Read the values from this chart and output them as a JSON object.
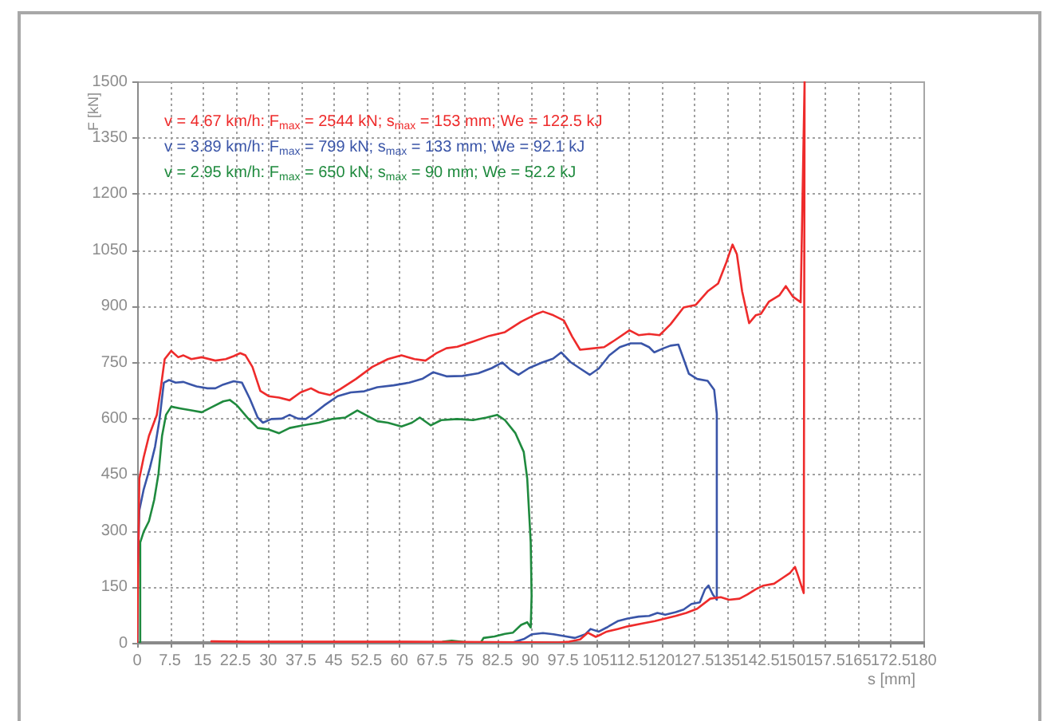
{
  "chart_data": {
    "type": "line",
    "xlabel": "s [mm]",
    "ylabel": "F [kN]",
    "xlim": [
      0,
      180
    ],
    "xticks": [
      0,
      7.5,
      15,
      22.5,
      30,
      37.5,
      45,
      52.5,
      60,
      67.5,
      75,
      82.5,
      90,
      97.5,
      105,
      112.5,
      120,
      127.5,
      135,
      142.5,
      150,
      157.5,
      165,
      172.5,
      180
    ],
    "ylim": [
      0,
      1500
    ],
    "yticks": [
      0,
      150,
      300,
      450,
      600,
      750,
      900,
      1050,
      1200,
      1350,
      1500
    ],
    "grid": true,
    "legend": "top left",
    "marker": "none",
    "line_style": "solid",
    "series": [
      {
        "name": "v = 4.67 km/h: F$_{max}$ = 2544 kN; s$_{max}$ = 153 mm; We = 122.5 kJ",
        "color": "#ee2b2b",
        "x": [
          0,
          0.5,
          1.5,
          2.7,
          4.5,
          5.4,
          6.3,
          7.8,
          9.4,
          10.6,
          12.4,
          14.8,
          17.9,
          20.3,
          22.1,
          23.6,
          24.8,
          26.4,
          28.2,
          30.1,
          32.5,
          34.9,
          37.4,
          39.8,
          41.6,
          44.1,
          46.5,
          50.1,
          53.8,
          57.4,
          60.5,
          63.5,
          66,
          68.4,
          70.8,
          73.3,
          76.9,
          80.6,
          84.2,
          87.9,
          91.5,
          92.9,
          95.3,
          97.7,
          99.6,
          101.4,
          103.8,
          106.9,
          109.3,
          112.7,
          114.8,
          117.2,
          119.6,
          122.1,
          125.1,
          127.9,
          130.6,
          133,
          134.9,
          136.3,
          137.3,
          138.5,
          140.1,
          141.6,
          142.8,
          144.6,
          147,
          148.5,
          150.1,
          151.9,
          152.8,
          152.6,
          151.2,
          150.6,
          149.4,
          147.6,
          145.8,
          143.4,
          141.6,
          139.7,
          137.9,
          135.5,
          133.6,
          131.2,
          128.2,
          125.7,
          123.3,
          120.9,
          118.5,
          115.4,
          112.3,
          110,
          107.5,
          106.3,
          105,
          103.2,
          101.4,
          98.9,
          96.5,
          80,
          60,
          40,
          25,
          17
        ],
        "values": [
          0,
          439,
          496,
          553,
          609,
          680,
          758,
          780,
          763,
          768,
          758,
          763,
          754,
          758,
          766,
          774,
          768,
          737,
          673,
          659,
          655,
          648,
          669,
          680,
          669,
          662,
          678,
          705,
          737,
          758,
          768,
          758,
          754,
          773,
          787,
          791,
          805,
          820,
          830,
          858,
          879,
          885,
          875,
          861,
          818,
          783,
          786,
          790,
          808,
          835,
          822,
          825,
          822,
          851,
          896,
          903,
          939,
          960,
          1017,
          1064,
          1038,
          939,
          854,
          875,
          879,
          911,
          928,
          953,
          925,
          910,
          1500,
          133,
          183,
          203,
          186,
          172,
          158,
          153,
          143,
          129,
          118,
          115,
          122,
          118,
          91,
          80,
          72,
          65,
          58,
          51,
          44,
          37,
          30,
          23,
          16,
          27,
          9,
          3,
          1,
          2,
          3,
          3,
          3,
          4
        ]
      },
      {
        "name": "v = 3.89 km/h: F$_{max}$ = 799 kN; s$_{max}$ = 133 mm; We = 92.1 kJ",
        "color": "#3a55a8",
        "x": [
          0,
          0,
          0.5,
          1.5,
          2.9,
          4.1,
          5.1,
          6.1,
          7.3,
          8.8,
          10.6,
          11.8,
          13.6,
          16.1,
          17.9,
          19.7,
          22.1,
          24,
          25.8,
          27.6,
          28.8,
          30.7,
          33.1,
          34.9,
          36.8,
          38.6,
          40.4,
          42.8,
          45.9,
          48.9,
          52,
          55,
          58.7,
          62.3,
          65.4,
          67.8,
          70.8,
          74.5,
          78.1,
          81.2,
          83.6,
          85.4,
          87.3,
          89.7,
          92.7,
          95.2,
          97.1,
          99.2,
          101.4,
          103.6,
          105.7,
          108.1,
          110.5,
          113,
          115.4,
          117.2,
          118.4,
          120.3,
          122.1,
          123.9,
          124.8,
          126.3,
          128.2,
          130.6,
          132.1,
          132.7,
          132.7,
          131.8,
          130.8,
          130,
          128.8,
          126.9,
          125.1,
          123.3,
          120.9,
          119.1,
          117.2,
          114.8,
          112.3,
          110,
          107.5,
          105.7,
          103.8,
          102.6,
          100.2,
          97.7,
          95.3,
          92.9,
          90.4,
          88.5,
          86,
          60,
          30
        ],
        "values": [
          0,
          141,
          354,
          410,
          467,
          524,
          595,
          695,
          702,
          695,
          697,
          692,
          685,
          680,
          680,
          690,
          699,
          695,
          652,
          602,
          588,
          598,
          599,
          609,
          599,
          598,
          612,
          634,
          659,
          669,
          672,
          683,
          688,
          695,
          706,
          723,
          712,
          713,
          720,
          734,
          749,
          730,
          716,
          734,
          749,
          759,
          776,
          750,
          733,
          716,
          733,
          768,
          790,
          800,
          800,
          790,
          776,
          786,
          794,
          797,
          768,
          719,
          705,
          700,
          676,
          612,
          115,
          129,
          153,
          143,
          108,
          104,
          89,
          82,
          75,
          80,
          72,
          70,
          65,
          58,
          41,
          30,
          37,
          23,
          13,
          18,
          23,
          26,
          23,
          10,
          1,
          0,
          0
        ]
      },
      {
        "name": "v = 2.95 km/h: F$_{max}$ = 650 kN; s$_{max}$ = 90 mm; We = 52.2 kJ",
        "color": "#1f8a3e",
        "x": [
          0.5,
          0.7,
          1.5,
          2.7,
          3.9,
          4.9,
          5.7,
          6.6,
          7.8,
          10,
          12.4,
          14.8,
          17.3,
          19.7,
          21.2,
          22.8,
          25.2,
          27.6,
          30.1,
          32.5,
          34.9,
          38,
          41.6,
          44.7,
          47.7,
          50.4,
          52.6,
          55,
          57.4,
          60.5,
          62.9,
          64.7,
          67.2,
          69.6,
          73.3,
          76.9,
          80,
          82.4,
          84.2,
          86.6,
          88.5,
          89.3,
          90.1,
          90.3,
          90.1,
          89.3,
          87.9,
          86,
          84.2,
          81.8,
          79.3,
          78.7,
          75,
          72,
          70,
          69.5
        ],
        "values": [
          0,
          268,
          297,
          325,
          382,
          453,
          553,
          609,
          631,
          626,
          621,
          616,
          631,
          645,
          649,
          635,
          602,
          574,
          570,
          560,
          574,
          581,
          588,
          598,
          602,
          621,
          607,
          592,
          588,
          578,
          588,
          602,
          581,
          595,
          598,
          595,
          602,
          609,
          595,
          560,
          510,
          439,
          268,
          126,
          41,
          55,
          48,
          27,
          24,
          17,
          13,
          1,
          2,
          6,
          3,
          0
        ]
      }
    ]
  }
}
